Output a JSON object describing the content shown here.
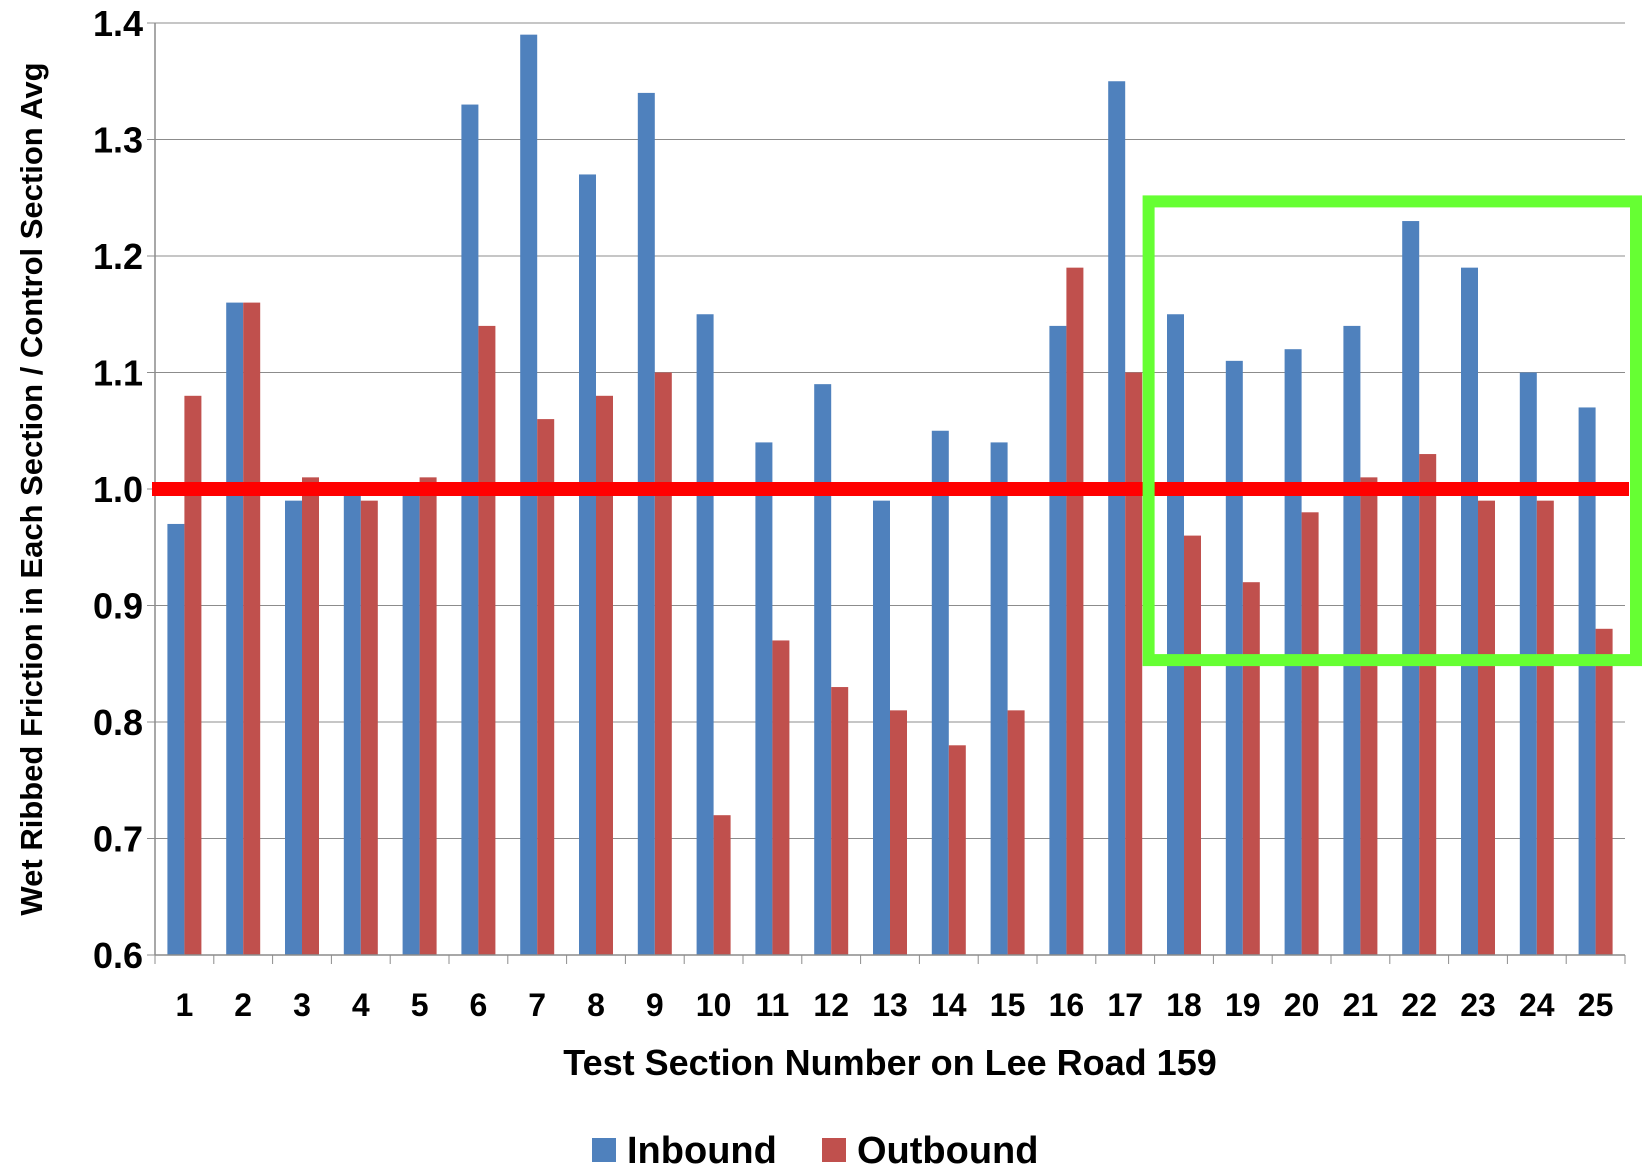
{
  "chart_data": {
    "type": "bar",
    "xlabel": "Test Section Number on Lee Road 159",
    "ylabel": "Wet Ribbed Friction in Each Section / Control Section Avg",
    "ylim": [
      0.6,
      1.4
    ],
    "yticks": [
      "0.6",
      "0.7",
      "0.8",
      "0.9",
      "1.0",
      "1.1",
      "1.2",
      "1.3",
      "1.4"
    ],
    "grid": true,
    "legend_position": "bottom",
    "categories": [
      "1",
      "2",
      "3",
      "4",
      "5",
      "6",
      "7",
      "8",
      "9",
      "10",
      "11",
      "12",
      "13",
      "14",
      "15",
      "16",
      "17",
      "18",
      "19",
      "20",
      "21",
      "22",
      "23",
      "24",
      "25"
    ],
    "series": [
      {
        "name": "Inbound",
        "color": "#4F81BD",
        "values": [
          0.97,
          1.16,
          0.99,
          1.0,
          1.0,
          1.33,
          1.39,
          1.27,
          1.34,
          1.15,
          1.04,
          1.09,
          0.99,
          1.05,
          1.04,
          1.14,
          1.35,
          1.15,
          1.11,
          1.12,
          1.14,
          1.23,
          1.19,
          1.1,
          1.07
        ]
      },
      {
        "name": "Outbound",
        "color": "#C0504D",
        "values": [
          1.08,
          1.16,
          1.01,
          0.99,
          1.01,
          1.14,
          1.06,
          1.08,
          1.1,
          0.72,
          0.87,
          0.83,
          0.81,
          0.78,
          0.81,
          1.19,
          1.1,
          0.96,
          0.92,
          0.98,
          1.01,
          1.03,
          0.99,
          0.99,
          0.88
        ]
      }
    ],
    "annotations": [
      {
        "kind": "reference-line",
        "y": 1.0,
        "color": "#FF0000"
      },
      {
        "kind": "highlight-box",
        "from_category": "18",
        "to_category": "25",
        "y_range": [
          0.86,
          1.24
        ],
        "color": "#66FF33"
      }
    ]
  }
}
